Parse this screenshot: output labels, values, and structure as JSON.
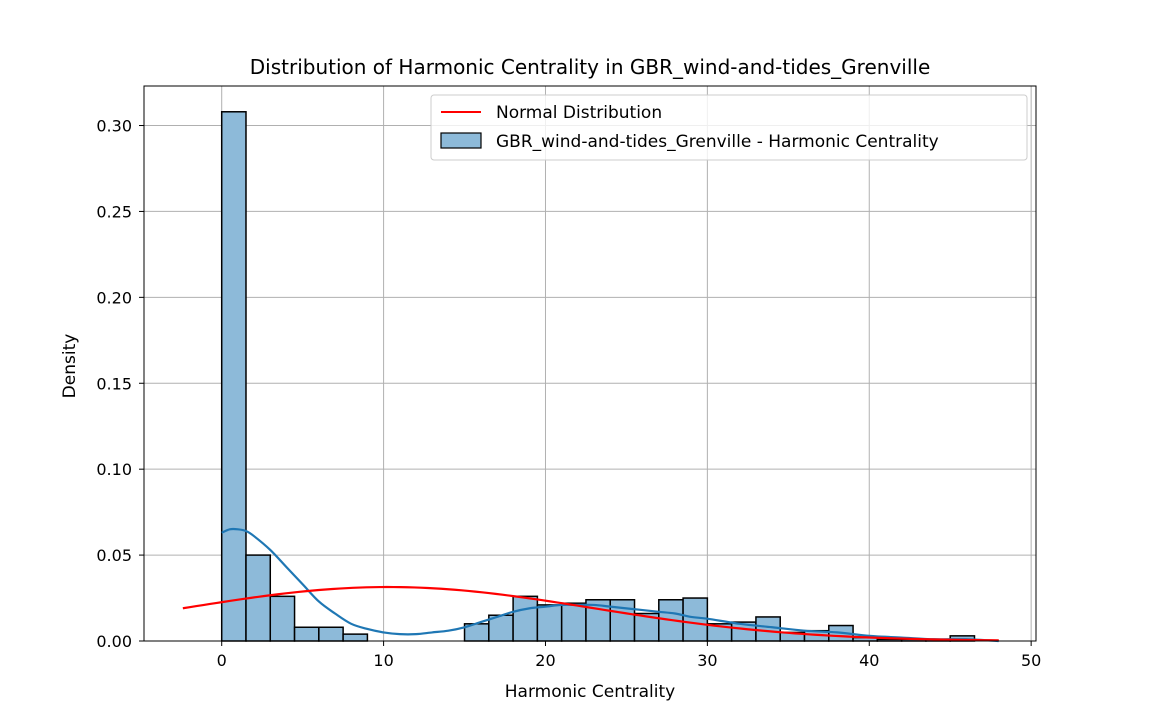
{
  "chart_data": {
    "type": "bar",
    "title": "Distribution of Harmonic Centrality in GBR_wind-and-tides_Grenville",
    "xlabel": "Harmonic Centrality",
    "ylabel": "Density",
    "xlim": [
      -4.8,
      50.3
    ],
    "ylim": [
      0,
      0.323
    ],
    "xticks": [
      0,
      10,
      20,
      30,
      40,
      50
    ],
    "yticks": [
      0.0,
      0.05,
      0.1,
      0.15,
      0.2,
      0.25,
      0.3
    ],
    "ytick_labels": [
      "0.00",
      "0.05",
      "0.10",
      "0.15",
      "0.20",
      "0.25",
      "0.30"
    ],
    "grid": true,
    "legend_position": "upper right",
    "colors": {
      "bars": "#8dbad9",
      "bar_edge": "#000000",
      "kde": "#1f77b4",
      "normal": "#ff0000",
      "grid": "#b0b0b0"
    },
    "histogram": {
      "name": "GBR_wind-and-tides_Grenville - Harmonic Centrality",
      "bin_width": 1.5,
      "bin_starts": [
        0,
        1.5,
        3,
        4.5,
        6,
        7.5,
        15,
        16.5,
        18,
        19.5,
        21,
        22.5,
        24,
        25.5,
        27,
        28.5,
        30,
        31.5,
        33,
        34.5,
        36,
        37.5,
        39,
        40.5,
        42,
        43.5,
        45
      ],
      "values": [
        0.308,
        0.05,
        0.026,
        0.008,
        0.008,
        0.004,
        0.01,
        0.015,
        0.026,
        0.021,
        0.022,
        0.024,
        0.024,
        0.016,
        0.024,
        0.025,
        0.01,
        0.011,
        0.014,
        0.005,
        0.006,
        0.009,
        0.002,
        0.001,
        0.001,
        0.001,
        0.003
      ]
    },
    "kde": {
      "x": [
        0,
        0.5,
        1,
        1.5,
        2,
        3,
        4,
        5,
        6,
        7,
        8,
        9,
        10,
        11,
        12,
        13,
        14,
        15,
        16,
        17,
        18,
        19,
        20,
        21,
        22,
        23,
        24,
        25,
        26,
        27,
        28,
        29,
        30,
        32,
        34,
        36,
        38,
        40,
        42,
        44,
        46,
        48
      ],
      "y": [
        0.063,
        0.065,
        0.065,
        0.064,
        0.061,
        0.053,
        0.043,
        0.033,
        0.023,
        0.016,
        0.01,
        0.007,
        0.005,
        0.004,
        0.004,
        0.005,
        0.006,
        0.008,
        0.011,
        0.014,
        0.017,
        0.019,
        0.02,
        0.021,
        0.021,
        0.021,
        0.02,
        0.019,
        0.018,
        0.017,
        0.016,
        0.014,
        0.013,
        0.01,
        0.008,
        0.006,
        0.005,
        0.003,
        0.002,
        0.001,
        0.001,
        0.0
      ]
    },
    "normal": {
      "name": "Normal Distribution",
      "mean": 10.3,
      "std": 12.7,
      "x_range": [
        -2.4,
        48.0
      ]
    }
  }
}
